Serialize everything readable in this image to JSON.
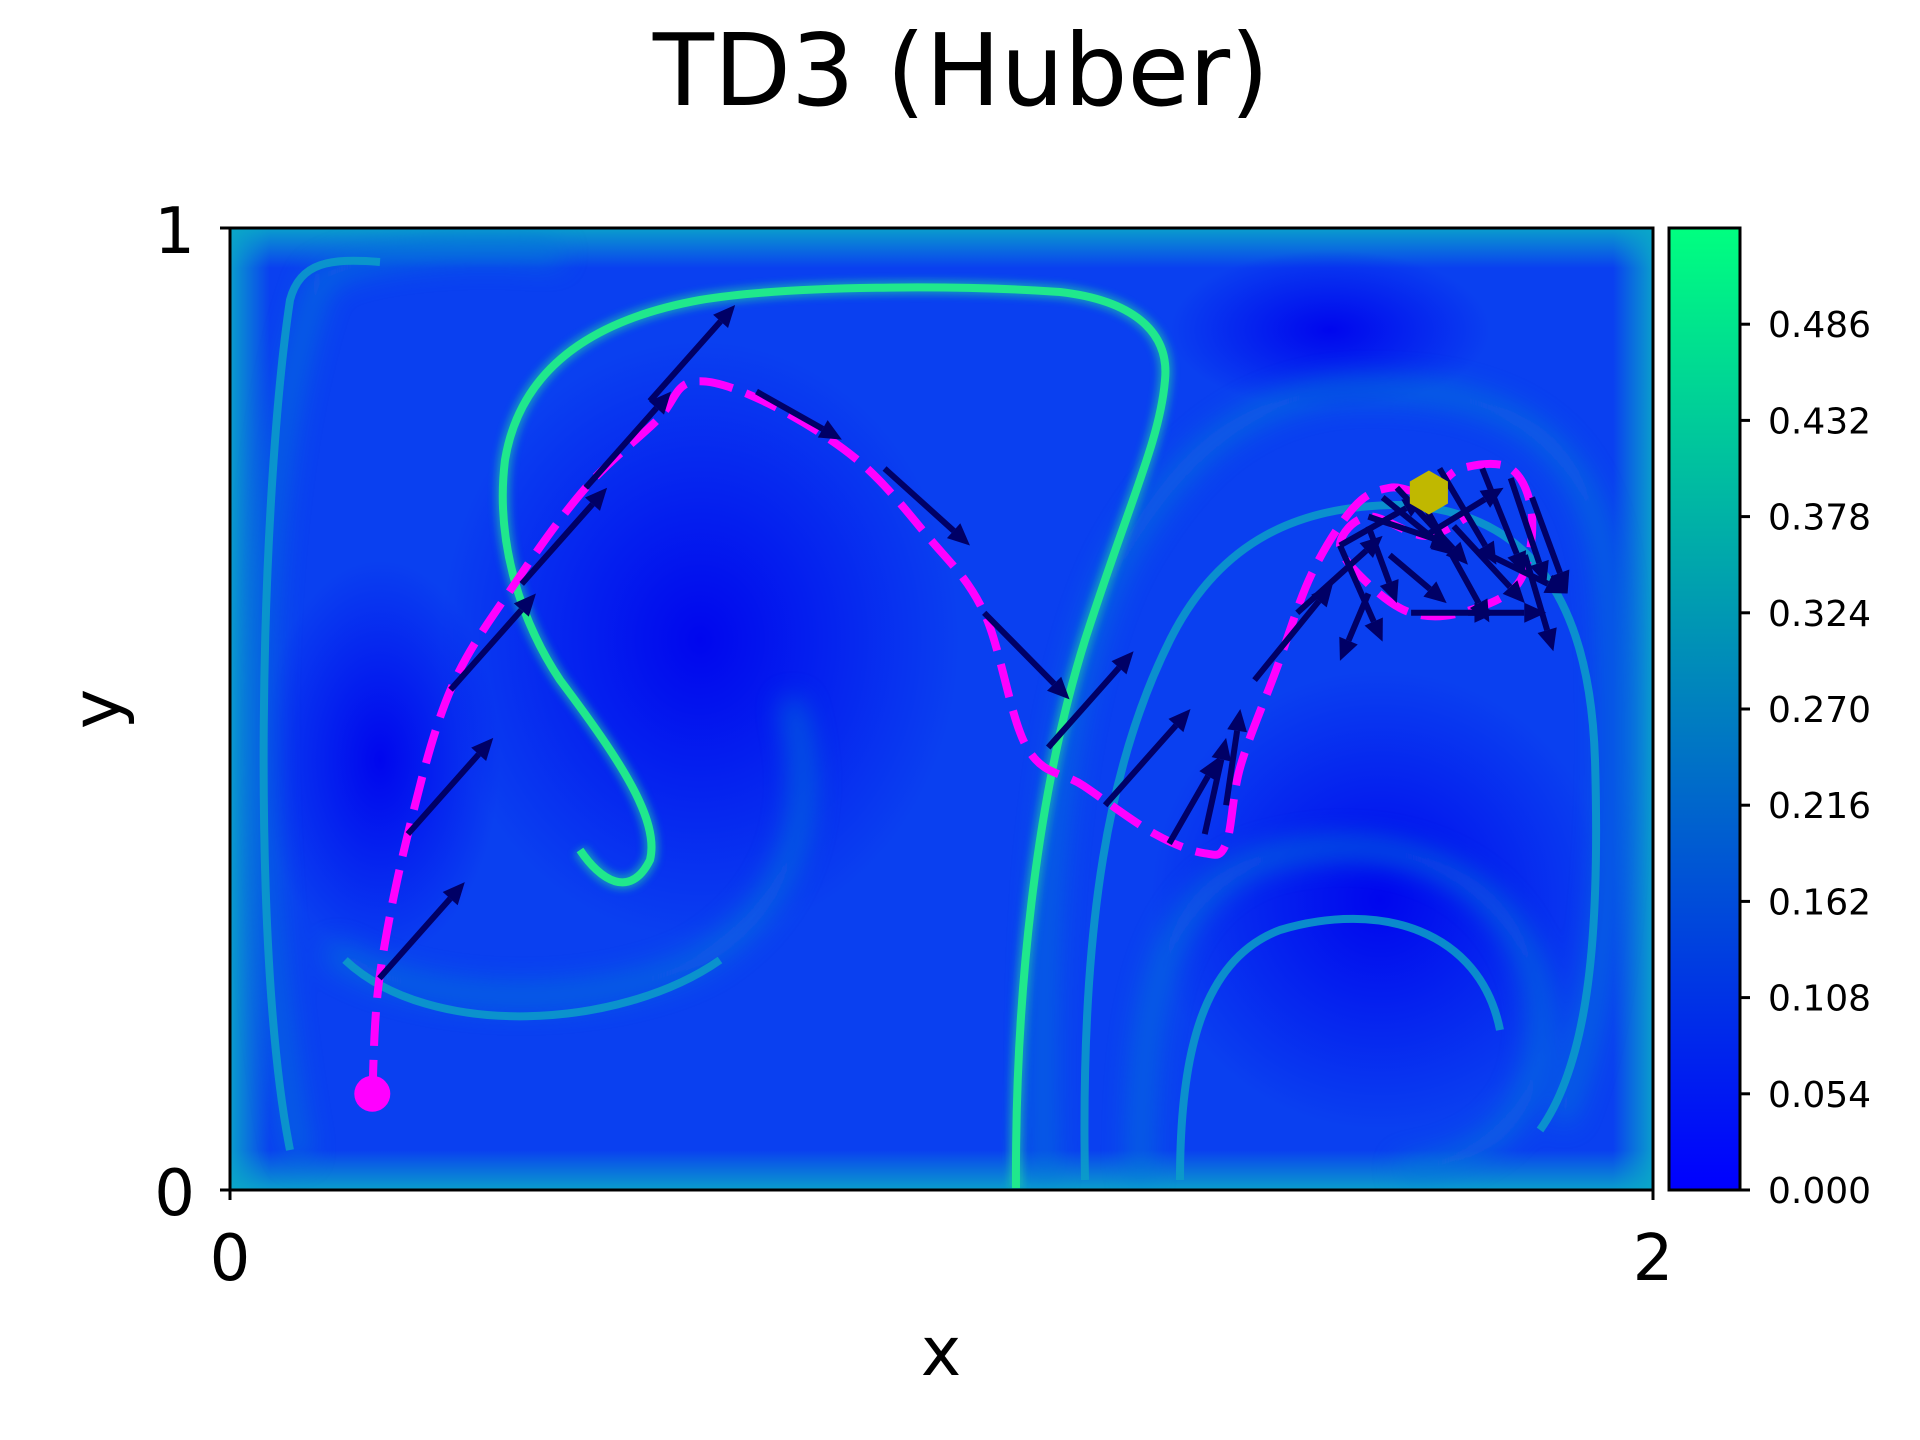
{
  "chart_data": {
    "type": "heatmap",
    "title": "TD3 (Huber)",
    "xlabel": "x",
    "ylabel": "y",
    "xlim": [
      0,
      2
    ],
    "ylim": [
      0,
      1
    ],
    "x_ticks": [
      "0",
      "2"
    ],
    "y_ticks": [
      "0",
      "1"
    ],
    "colormap": [
      "#0000ff",
      "#00ff80"
    ],
    "colorbar": {
      "range": [
        0.0,
        0.54
      ],
      "ticks": [
        "0.000",
        "0.054",
        "0.108",
        "0.162",
        "0.216",
        "0.270",
        "0.324",
        "0.378",
        "0.432",
        "0.486"
      ]
    },
    "path_color": "#ff00ff",
    "arrow_color": "#000066",
    "start_color": "#ff00ff",
    "target_color": "#c0b800",
    "start": {
      "x": 0.2,
      "y": 0.1
    },
    "target": {
      "x": 1.685,
      "y": 0.725
    },
    "trajectory": [
      {
        "x": 0.2,
        "y": 0.1
      },
      {
        "x": 0.21,
        "y": 0.22
      },
      {
        "x": 0.25,
        "y": 0.37
      },
      {
        "x": 0.31,
        "y": 0.52
      },
      {
        "x": 0.4,
        "y": 0.63
      },
      {
        "x": 0.5,
        "y": 0.73
      },
      {
        "x": 0.6,
        "y": 0.8
      },
      {
        "x": 0.65,
        "y": 0.84
      },
      {
        "x": 0.75,
        "y": 0.82
      },
      {
        "x": 0.88,
        "y": 0.76
      },
      {
        "x": 0.98,
        "y": 0.68
      },
      {
        "x": 1.06,
        "y": 0.6
      },
      {
        "x": 1.12,
        "y": 0.46
      },
      {
        "x": 1.2,
        "y": 0.42
      },
      {
        "x": 1.3,
        "y": 0.37
      },
      {
        "x": 1.37,
        "y": 0.35
      },
      {
        "x": 1.4,
        "y": 0.36
      },
      {
        "x": 1.42,
        "y": 0.44
      },
      {
        "x": 1.47,
        "y": 0.54
      },
      {
        "x": 1.52,
        "y": 0.64
      },
      {
        "x": 1.58,
        "y": 0.71
      },
      {
        "x": 1.63,
        "y": 0.73
      },
      {
        "x": 1.685,
        "y": 0.725
      },
      {
        "x": 1.73,
        "y": 0.75
      },
      {
        "x": 1.8,
        "y": 0.75
      },
      {
        "x": 1.83,
        "y": 0.7
      },
      {
        "x": 1.81,
        "y": 0.63
      },
      {
        "x": 1.73,
        "y": 0.6
      },
      {
        "x": 1.66,
        "y": 0.6
      },
      {
        "x": 1.6,
        "y": 0.63
      },
      {
        "x": 1.56,
        "y": 0.67
      },
      {
        "x": 1.6,
        "y": 0.7
      },
      {
        "x": 1.68,
        "y": 0.68
      },
      {
        "x": 1.74,
        "y": 0.7
      }
    ],
    "arrows": [
      {
        "x": 0.21,
        "y": 0.22,
        "dx": 0.12,
        "dy": 0.1
      },
      {
        "x": 0.25,
        "y": 0.37,
        "dx": 0.12,
        "dy": 0.1
      },
      {
        "x": 0.31,
        "y": 0.52,
        "dx": 0.12,
        "dy": 0.1
      },
      {
        "x": 0.41,
        "y": 0.63,
        "dx": 0.12,
        "dy": 0.1
      },
      {
        "x": 0.5,
        "y": 0.73,
        "dx": 0.12,
        "dy": 0.1
      },
      {
        "x": 0.59,
        "y": 0.82,
        "dx": 0.12,
        "dy": 0.1
      },
      {
        "x": 0.74,
        "y": 0.83,
        "dx": 0.12,
        "dy": -0.05
      },
      {
        "x": 0.92,
        "y": 0.75,
        "dx": 0.12,
        "dy": -0.08
      },
      {
        "x": 1.06,
        "y": 0.6,
        "dx": 0.12,
        "dy": -0.09
      },
      {
        "x": 1.15,
        "y": 0.46,
        "dx": 0.12,
        "dy": 0.1
      },
      {
        "x": 1.23,
        "y": 0.4,
        "dx": 0.12,
        "dy": 0.1
      },
      {
        "x": 1.32,
        "y": 0.36,
        "dx": 0.07,
        "dy": 0.09
      },
      {
        "x": 1.37,
        "y": 0.37,
        "dx": 0.03,
        "dy": 0.1
      },
      {
        "x": 1.4,
        "y": 0.4,
        "dx": 0.02,
        "dy": 0.1
      },
      {
        "x": 1.44,
        "y": 0.53,
        "dx": 0.11,
        "dy": 0.1
      },
      {
        "x": 1.5,
        "y": 0.6,
        "dx": 0.12,
        "dy": 0.08
      },
      {
        "x": 1.56,
        "y": 0.67,
        "dx": 0.12,
        "dy": 0.05
      },
      {
        "x": 1.6,
        "y": 0.7,
        "dx": 0.12,
        "dy": -0.03
      },
      {
        "x": 1.64,
        "y": 0.73,
        "dx": 0.1,
        "dy": -0.08
      },
      {
        "x": 1.7,
        "y": 0.75,
        "dx": 0.08,
        "dy": -0.1
      },
      {
        "x": 1.76,
        "y": 0.75,
        "dx": 0.06,
        "dy": -0.11
      },
      {
        "x": 1.8,
        "y": 0.74,
        "dx": 0.05,
        "dy": -0.11
      },
      {
        "x": 1.83,
        "y": 0.72,
        "dx": 0.05,
        "dy": -0.1
      },
      {
        "x": 1.82,
        "y": 0.66,
        "dx": 0.04,
        "dy": -0.1
      },
      {
        "x": 1.74,
        "y": 0.6,
        "dx": 0.11,
        "dy": 0.0
      },
      {
        "x": 1.66,
        "y": 0.6,
        "dx": 0.12,
        "dy": 0.0
      },
      {
        "x": 1.6,
        "y": 0.62,
        "dx": -0.04,
        "dy": -0.07
      },
      {
        "x": 1.56,
        "y": 0.67,
        "dx": 0.06,
        "dy": -0.1
      },
      {
        "x": 1.6,
        "y": 0.69,
        "dx": 0.04,
        "dy": -0.08
      },
      {
        "x": 1.63,
        "y": 0.66,
        "dx": 0.08,
        "dy": -0.05
      },
      {
        "x": 1.68,
        "y": 0.68,
        "dx": 0.11,
        "dy": 0.05
      },
      {
        "x": 1.72,
        "y": 0.69,
        "dx": 0.1,
        "dy": -0.08
      },
      {
        "x": 1.77,
        "y": 0.66,
        "dx": 0.11,
        "dy": -0.04
      },
      {
        "x": 1.68,
        "y": 0.71,
        "dx": 0.09,
        "dy": -0.12
      },
      {
        "x": 1.62,
        "y": 0.72,
        "dx": 0.1,
        "dy": -0.06
      }
    ]
  }
}
